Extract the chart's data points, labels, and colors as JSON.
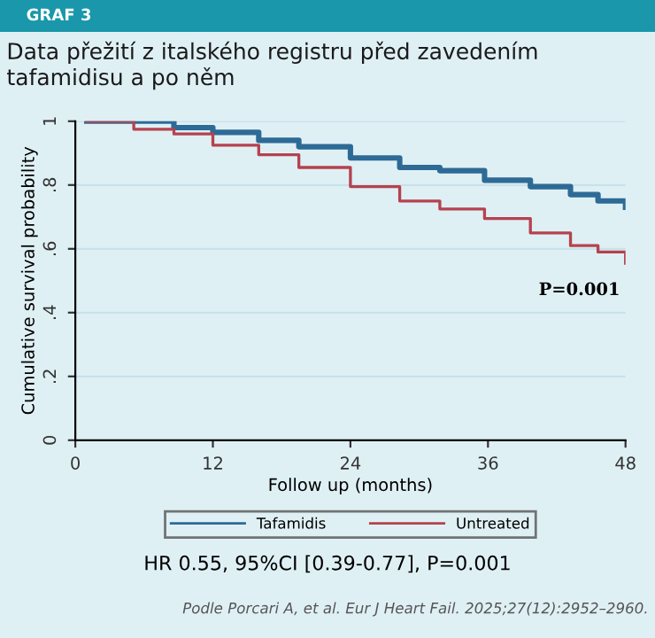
{
  "chart_data": {
    "type": "step",
    "title": "Data přežití z italského registru před zavedením tafamidisu a po něm",
    "subtitle": "GRAF 3",
    "xlabel": "Follow up (months)",
    "ylabel": "Cumulative survival probability",
    "series": [
      {
        "name": "Tafamidis",
        "color": "#2e6a96",
        "x": [
          1,
          8.6,
          12,
          16,
          19.5,
          24,
          28.3,
          31.8,
          35.7,
          39.7,
          43.2,
          45.6,
          48
        ],
        "values": [
          1.0,
          0.98,
          0.965,
          0.94,
          0.92,
          0.885,
          0.855,
          0.845,
          0.815,
          0.795,
          0.77,
          0.75,
          0.73
        ]
      },
      {
        "name": "Untreated",
        "color": "#b5424e",
        "x": [
          1,
          5.1,
          8.6,
          12,
          16,
          19.5,
          24,
          28.3,
          31.8,
          35.7,
          39.7,
          43.2,
          45.6,
          48
        ],
        "values": [
          1.0,
          0.975,
          0.96,
          0.925,
          0.895,
          0.855,
          0.795,
          0.75,
          0.725,
          0.695,
          0.65,
          0.61,
          0.59,
          0.555
        ]
      }
    ],
    "xlim": [
      0,
      48
    ],
    "xticks": [
      0,
      12,
      24,
      36,
      48
    ],
    "ylim": [
      0,
      1
    ],
    "yticks": [
      {
        "value": 0,
        "label": "0"
      },
      {
        "value": 0.2,
        "label": ".2"
      },
      {
        "value": 0.4,
        "label": ".4"
      },
      {
        "value": 0.6,
        "label": ".6"
      },
      {
        "value": 0.8,
        "label": ".8"
      },
      {
        "value": 1,
        "label": "1"
      }
    ],
    "grid": "y",
    "legend": "bottom",
    "annotations": [
      "P=0.001",
      "HR 0.55, 95%CI [0.39-0.77], P=0.001",
      "Podle Porcari A, et al. Eur J Heart Fail. 2025;27(12):2952–2960."
    ]
  }
}
